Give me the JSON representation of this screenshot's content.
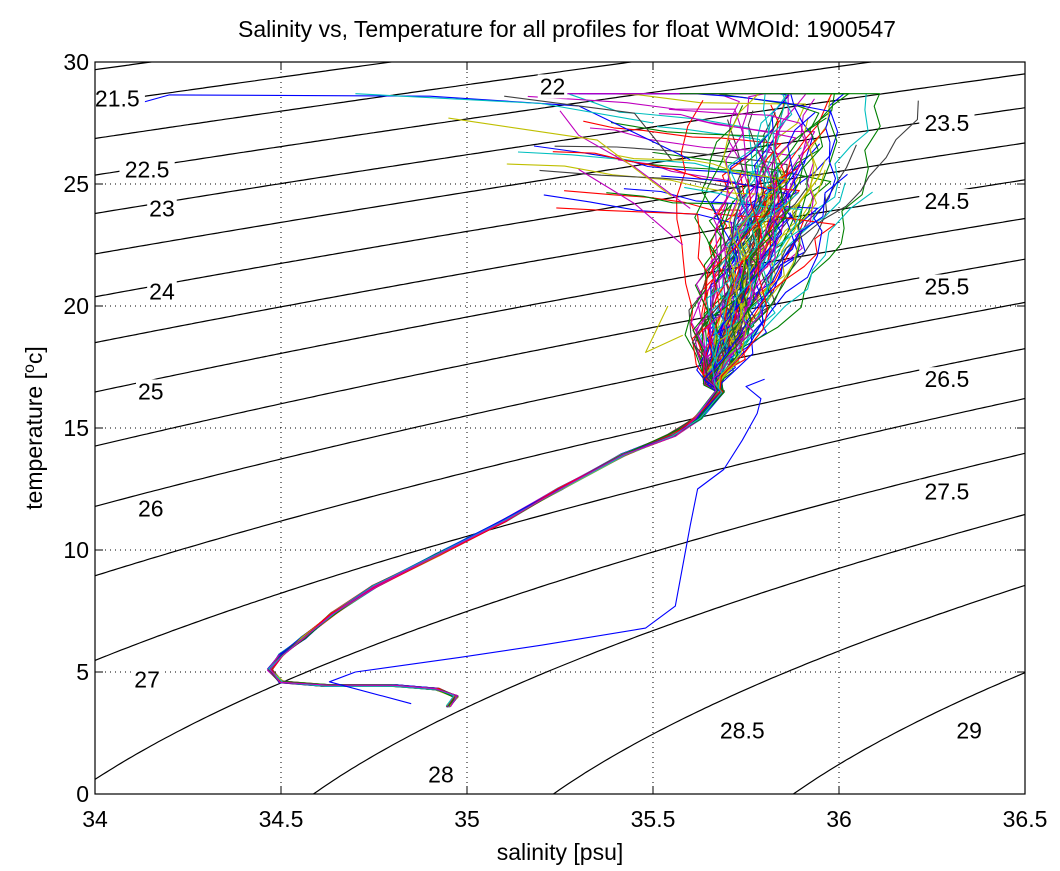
{
  "chart_data": {
    "type": "line",
    "title": "Salinity vs, Temperature for all profiles for float WMOId: 1900547",
    "xlabel": "salinity [psu]",
    "ylabel_main": "temperature [",
    "ylabel_sup": "o",
    "ylabel_end": "c]",
    "xlim": [
      34,
      36.5
    ],
    "ylim": [
      0,
      30
    ],
    "xticks": [
      34,
      34.5,
      35,
      35.5,
      36,
      36.5
    ],
    "xtick_labels": [
      "34",
      "34.5",
      "35",
      "35.5",
      "36",
      "36.5"
    ],
    "yticks": [
      0,
      5,
      10,
      15,
      20,
      25,
      30
    ],
    "ytick_labels": [
      "0",
      "5",
      "10",
      "15",
      "20",
      "25",
      "30"
    ],
    "grid": true,
    "density_contours": [
      {
        "level": "21.5",
        "label": "21.5",
        "label_at": [
          34.06,
          28.5
        ]
      },
      {
        "level": "22",
        "label": "22",
        "label_at": [
          35.23,
          29.0
        ]
      },
      {
        "level": "22.5",
        "label": "22.5",
        "label_at": [
          34.14,
          25.6
        ]
      },
      {
        "level": "23",
        "label": "23",
        "label_at": [
          34.18,
          24.0
        ]
      },
      {
        "level": "23.5",
        "label": "23.5",
        "label_at": [
          36.29,
          27.5
        ]
      },
      {
        "level": "24",
        "label": "24",
        "label_at": [
          34.18,
          20.6
        ]
      },
      {
        "level": "24.5",
        "label": "24.5",
        "label_at": [
          36.29,
          24.3
        ]
      },
      {
        "level": "25",
        "label": "25",
        "label_at": [
          34.15,
          16.5
        ]
      },
      {
        "level": "25.5",
        "label": "25.5",
        "label_at": [
          36.29,
          20.8
        ]
      },
      {
        "level": "26",
        "label": "26",
        "label_at": [
          34.15,
          11.7
        ]
      },
      {
        "level": "26.5",
        "label": "26.5",
        "label_at": [
          36.29,
          17.0
        ]
      },
      {
        "level": "27",
        "label": "27",
        "label_at": [
          34.14,
          4.7
        ]
      },
      {
        "level": "27.5",
        "label": "27.5",
        "label_at": [
          36.29,
          12.4
        ]
      },
      {
        "level": "28",
        "label": "28",
        "label_at": [
          34.93,
          0.8
        ]
      },
      {
        "level": "28.5",
        "label": "28.5",
        "label_at": [
          35.74,
          2.6
        ]
      },
      {
        "level": "29",
        "label": "29",
        "label_at": [
          36.35,
          2.6
        ]
      }
    ],
    "profile_colors": [
      "#0000ff",
      "#008000",
      "#ff0000",
      "#00bfbf",
      "#bf00bf",
      "#bfbf00",
      "#404040"
    ],
    "profile_count": 110,
    "anomalous_profile": {
      "color": "#0000ff",
      "points": [
        [
          34.85,
          3.7
        ],
        [
          34.63,
          4.6
        ],
        [
          34.7,
          5.0
        ],
        [
          34.98,
          5.6
        ],
        [
          35.2,
          6.1
        ],
        [
          35.48,
          6.8
        ],
        [
          35.56,
          7.7
        ],
        [
          35.6,
          11.0
        ],
        [
          35.62,
          12.5
        ],
        [
          35.69,
          13.3
        ],
        [
          35.74,
          14.5
        ],
        [
          35.78,
          15.6
        ],
        [
          35.79,
          16.2
        ],
        [
          35.75,
          16.7
        ],
        [
          35.8,
          17.0
        ]
      ]
    }
  }
}
